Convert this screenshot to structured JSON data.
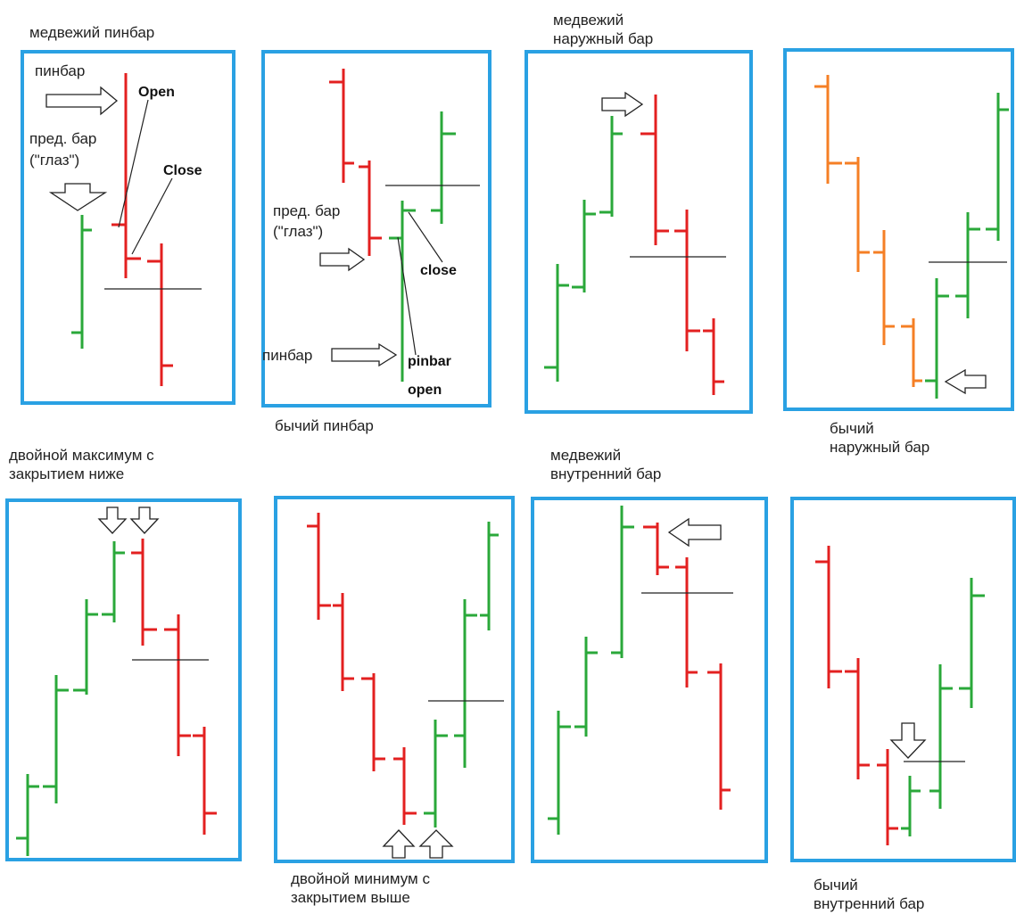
{
  "captions": {
    "p1": "медвежий пинбар",
    "p2": "бычий пинбар",
    "p3": "медвежий\nнаружный бар",
    "p4": "бычий\nнаружный бар",
    "p5": "двойной максимум с\nзакрытием ниже",
    "p6": "двойной минимум с\nзакрытием выше",
    "p7": "медвежий\nвнутренний бар",
    "p8": "бычий\nвнутренний бар"
  },
  "annotations": {
    "p1_pinbar": "пинбар",
    "p1_prev_bar_1": "пред. бар",
    "p1_prev_bar_2": "(\"глаз\")",
    "p1_open": "Open",
    "p1_close": "Close",
    "p2_prev_bar_1": "пред. бар",
    "p2_prev_bar_2": "(\"глаз\")",
    "p2_close": "close",
    "p2_pinbar_ru": "пинбар",
    "p2_pinbar_en": "pinbar",
    "p2_open": "open"
  },
  "colors": {
    "panel_border": "#2aa1e3",
    "bull": "#2aa83a",
    "bear": "#e32020",
    "orange": "#f57f25",
    "line": "#222222"
  }
}
